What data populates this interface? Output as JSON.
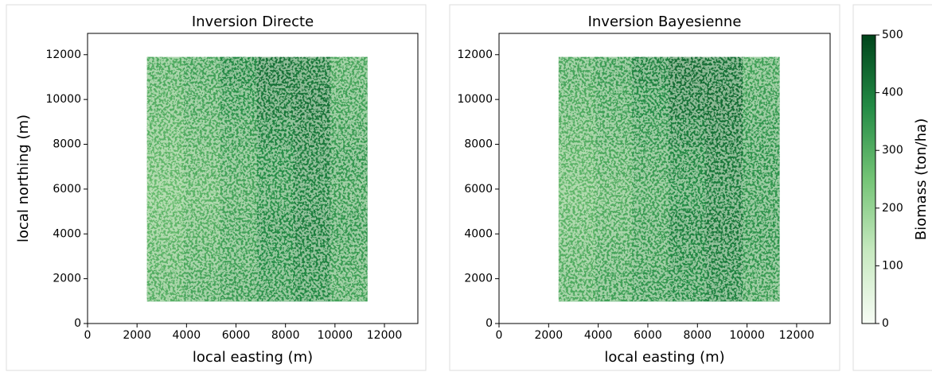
{
  "chart_data": [
    {
      "type": "heatmap",
      "title": "Inversion Directe",
      "x_label": "local easting (m)",
      "y_label": "local northing (m)",
      "xlim": [
        0,
        13350
      ],
      "ylim": [
        0,
        12950
      ],
      "xticks": [
        0,
        2000,
        4000,
        6000,
        8000,
        10000,
        12000
      ],
      "yticks": [
        0,
        2000,
        4000,
        6000,
        8000,
        10000,
        12000
      ],
      "x_edges": [
        2400,
        3883,
        5367,
        6850,
        8333,
        9817,
        11300
      ],
      "y_edges": [
        1000,
        2400,
        3700,
        5100,
        6500,
        7900,
        9200,
        10600,
        11900
      ],
      "z": [
        [
          300,
          320,
          340,
          360,
          380,
          330
        ],
        [
          290,
          310,
          330,
          370,
          390,
          340
        ],
        [
          280,
          300,
          330,
          380,
          400,
          350
        ],
        [
          270,
          290,
          320,
          360,
          390,
          340
        ],
        [
          280,
          300,
          330,
          370,
          400,
          350
        ],
        [
          290,
          310,
          340,
          390,
          410,
          340
        ],
        [
          300,
          320,
          360,
          410,
          420,
          330
        ],
        [
          310,
          330,
          380,
          420,
          410,
          320
        ]
      ]
    },
    {
      "type": "heatmap",
      "title": "Inversion Bayesienne",
      "x_label": "local easting (m)",
      "xlim": [
        0,
        13350
      ],
      "ylim": [
        0,
        12950
      ],
      "xticks": [
        0,
        2000,
        4000,
        6000,
        8000,
        10000,
        12000
      ],
      "yticks": [
        0,
        2000,
        4000,
        6000,
        8000,
        10000,
        12000
      ],
      "x_edges": [
        2400,
        3883,
        5367,
        6850,
        8333,
        9817,
        11300
      ],
      "y_edges": [
        1000,
        2400,
        3700,
        5100,
        6500,
        7900,
        9200,
        10600,
        11900
      ],
      "z": [
        [
          310,
          330,
          350,
          370,
          390,
          340
        ],
        [
          300,
          320,
          340,
          380,
          400,
          350
        ],
        [
          290,
          310,
          340,
          390,
          410,
          360
        ],
        [
          280,
          300,
          330,
          370,
          400,
          350
        ],
        [
          290,
          310,
          340,
          380,
          410,
          360
        ],
        [
          300,
          320,
          350,
          400,
          420,
          350
        ],
        [
          310,
          330,
          370,
          420,
          430,
          340
        ],
        [
          320,
          340,
          390,
          430,
          420,
          330
        ]
      ]
    },
    {
      "type": "colorbar",
      "label": "Biomass (ton/ha)",
      "ylim": [
        0,
        500
      ],
      "yticks": [
        0,
        100,
        200,
        300,
        400,
        500
      ],
      "colors": [
        "#f7fcf5",
        "#c7e9c0",
        "#74c476",
        "#238b45",
        "#00441b"
      ]
    }
  ]
}
